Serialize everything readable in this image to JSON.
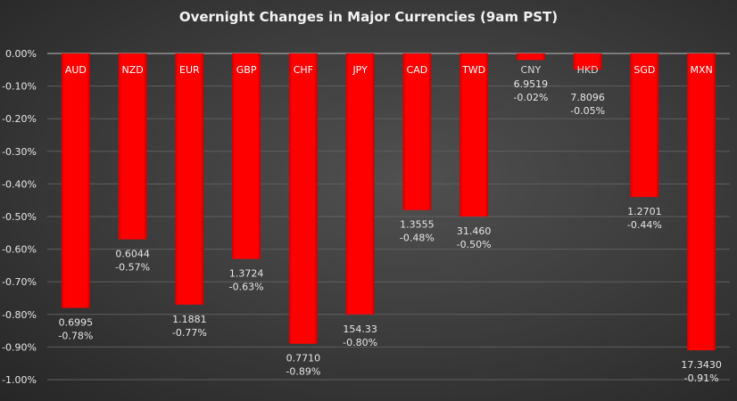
{
  "chart_data": {
    "type": "bar",
    "title": "Overnight Changes in Major Currencies (9am PST)",
    "xlabel": "",
    "ylabel": "",
    "ylim": [
      -1.0,
      0.0
    ],
    "yticks": [
      "0.00%",
      "-0.10%",
      "-0.20%",
      "-0.30%",
      "-0.40%",
      "-0.50%",
      "-0.60%",
      "-0.70%",
      "-0.80%",
      "-0.90%",
      "-1.00%"
    ],
    "grid": true,
    "legend": "none",
    "bar_color": "#ff0000",
    "categories": [
      "AUD",
      "NZD",
      "EUR",
      "GBP",
      "CHF",
      "JPY",
      "CAD",
      "TWD",
      "CNY",
      "HKD",
      "SGD",
      "MXN"
    ],
    "values": [
      -0.78,
      -0.57,
      -0.77,
      -0.63,
      -0.89,
      -0.8,
      -0.48,
      -0.5,
      -0.02,
      -0.05,
      -0.44,
      -0.91
    ],
    "rates": [
      "0.6995",
      "0.6044",
      "1.1881",
      "1.3724",
      "0.7710",
      "154.33",
      "1.3555",
      "31.460",
      "6.9519",
      "7.8096",
      "1.2701",
      "17.3430"
    ],
    "pct_labels": [
      "-0.78%",
      "-0.57%",
      "-0.77%",
      "-0.63%",
      "-0.89%",
      "-0.80%",
      "-0.48%",
      "-0.50%",
      "-0.02%",
      "-0.05%",
      "-0.44%",
      "-0.91%"
    ]
  }
}
